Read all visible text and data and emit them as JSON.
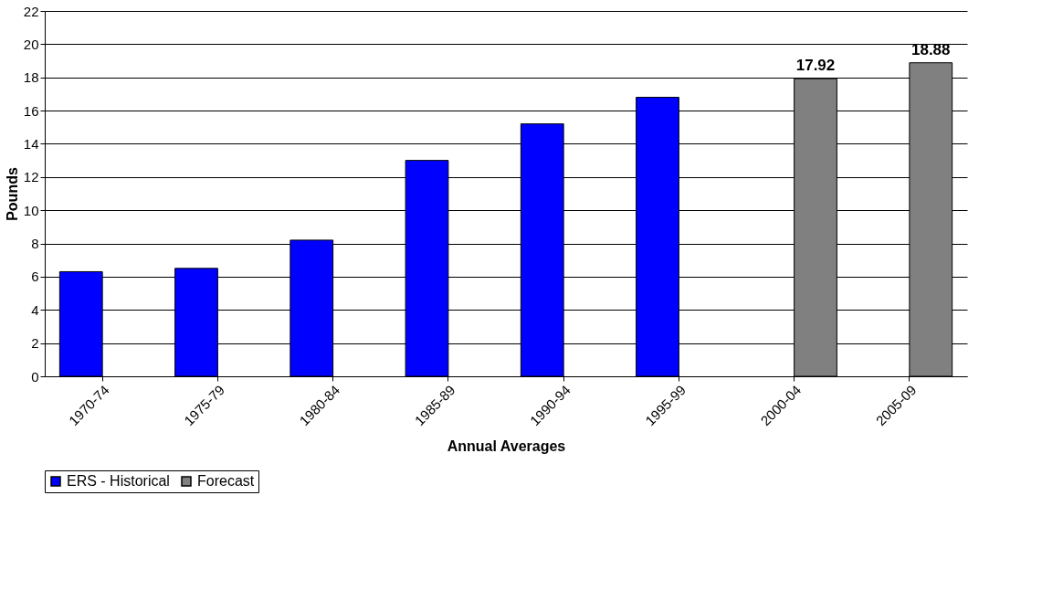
{
  "chart_data": {
    "type": "bar",
    "xlabel": "Annual Averages",
    "ylabel": "Pounds",
    "categories": [
      "1970-74",
      "1975-79",
      "1980-84",
      "1985-89",
      "1990-94",
      "1995-99",
      "2000-04",
      "2005-09"
    ],
    "series": [
      {
        "name": "ERS - Historical",
        "color": "#0000ff",
        "values": [
          6.3,
          6.5,
          8.2,
          13.0,
          15.2,
          16.8,
          null,
          null
        ]
      },
      {
        "name": "Forecast",
        "color": "#808080",
        "values": [
          null,
          null,
          null,
          null,
          null,
          null,
          17.92,
          18.88
        ],
        "value_labels": [
          null,
          null,
          null,
          null,
          null,
          null,
          "17.92",
          "18.88"
        ]
      }
    ],
    "ylim": [
      0,
      22
    ],
    "yticks": [
      0,
      2,
      4,
      6,
      8,
      10,
      12,
      14,
      16,
      18,
      20,
      22
    ],
    "grid": "y",
    "legend": "bottom"
  }
}
